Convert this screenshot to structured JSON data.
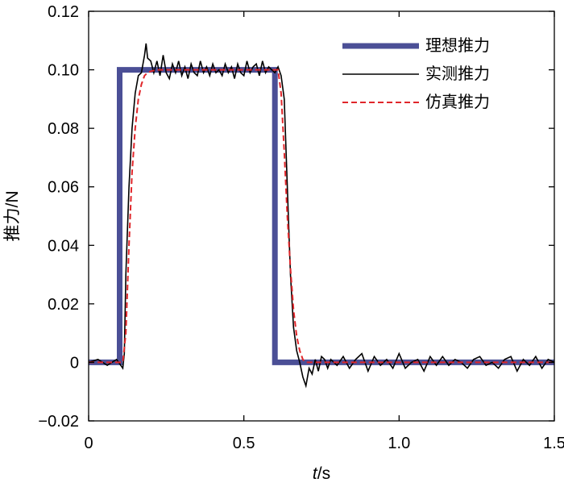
{
  "chart_data": {
    "type": "line",
    "title": "",
    "xlabel_var": "t",
    "xlabel_unit": "/s",
    "ylabel": "推力/N",
    "xlim": [
      0,
      1.5
    ],
    "ylim": [
      -0.02,
      0.12
    ],
    "xticks": [
      0,
      0.5,
      1.0,
      1.5
    ],
    "xtick_labels": [
      "0",
      "0.5",
      "1.0",
      "1.5"
    ],
    "yticks": [
      -0.02,
      0,
      0.02,
      0.04,
      0.06,
      0.08,
      0.1,
      0.12
    ],
    "ytick_labels": [
      "−0.02",
      "0",
      "0.02",
      "0.04",
      "0.06",
      "0.08",
      "0.10",
      "0.12"
    ],
    "grid": false,
    "legend_position": "top-right",
    "series": [
      {
        "name": "理想推力",
        "color": "#4b4f96",
        "style": "solid-thick",
        "x": [
          0,
          0.1,
          0.1,
          0.6,
          0.6,
          1.5
        ],
        "y": [
          0,
          0,
          0.1,
          0.1,
          0,
          0
        ]
      },
      {
        "name": "实测推力",
        "color": "#000000",
        "style": "solid",
        "x": [
          0,
          0.03,
          0.06,
          0.09,
          0.11,
          0.115,
          0.12,
          0.13,
          0.14,
          0.15,
          0.16,
          0.17,
          0.18,
          0.185,
          0.19,
          0.2,
          0.21,
          0.22,
          0.23,
          0.24,
          0.25,
          0.26,
          0.27,
          0.28,
          0.29,
          0.3,
          0.31,
          0.32,
          0.33,
          0.34,
          0.35,
          0.36,
          0.37,
          0.38,
          0.39,
          0.4,
          0.41,
          0.42,
          0.43,
          0.44,
          0.45,
          0.46,
          0.47,
          0.48,
          0.49,
          0.5,
          0.51,
          0.52,
          0.53,
          0.54,
          0.55,
          0.56,
          0.57,
          0.58,
          0.59,
          0.6,
          0.61,
          0.62,
          0.63,
          0.64,
          0.65,
          0.66,
          0.67,
          0.68,
          0.69,
          0.7,
          0.71,
          0.72,
          0.73,
          0.74,
          0.75,
          0.76,
          0.77,
          0.78,
          0.79,
          0.8,
          0.82,
          0.84,
          0.86,
          0.88,
          0.9,
          0.92,
          0.94,
          0.96,
          0.98,
          1.0,
          1.02,
          1.04,
          1.06,
          1.08,
          1.1,
          1.12,
          1.14,
          1.16,
          1.18,
          1.2,
          1.22,
          1.24,
          1.26,
          1.28,
          1.3,
          1.32,
          1.34,
          1.36,
          1.38,
          1.4,
          1.42,
          1.44,
          1.46,
          1.48,
          1.5
        ],
        "y": [
          0,
          0.001,
          -0.001,
          0.001,
          -0.002,
          0.003,
          0.03,
          0.06,
          0.08,
          0.092,
          0.098,
          0.099,
          0.105,
          0.109,
          0.104,
          0.103,
          0.099,
          0.103,
          0.098,
          0.105,
          0.099,
          0.097,
          0.102,
          0.099,
          0.103,
          0.098,
          0.101,
          0.097,
          0.102,
          0.099,
          0.098,
          0.103,
          0.099,
          0.101,
          0.098,
          0.102,
          0.099,
          0.1,
          0.098,
          0.102,
          0.099,
          0.101,
          0.097,
          0.102,
          0.099,
          0.098,
          0.103,
          0.099,
          0.101,
          0.102,
          0.098,
          0.103,
          0.099,
          0.101,
          0.1,
          0.099,
          0.101,
          0.098,
          0.09,
          0.06,
          0.03,
          0.012,
          0.004,
          0.0,
          -0.005,
          -0.008,
          -0.002,
          -0.004,
          0.001,
          -0.003,
          0.002,
          0.001,
          -0.002,
          0.001,
          0.0,
          -0.001,
          0.002,
          -0.002,
          0.001,
          0.003,
          -0.003,
          0.002,
          -0.001,
          0.001,
          -0.002,
          0.003,
          -0.002,
          0.0,
          0.001,
          -0.003,
          0.002,
          -0.001,
          0.002,
          -0.001,
          0.001,
          0.0,
          -0.002,
          0.001,
          0.002,
          -0.001,
          0.0,
          -0.002,
          0.001,
          0.002,
          -0.003,
          0.001,
          -0.001,
          0.002,
          -0.002,
          0.001,
          0.0
        ]
      },
      {
        "name": "仿真推力",
        "color": "#e0262a",
        "style": "dashed",
        "x": [
          0,
          0.1,
          0.11,
          0.12,
          0.13,
          0.14,
          0.15,
          0.16,
          0.17,
          0.18,
          0.19,
          0.2,
          0.22,
          0.25,
          0.3,
          0.4,
          0.5,
          0.6,
          0.61,
          0.62,
          0.63,
          0.64,
          0.65,
          0.66,
          0.67,
          0.68,
          0.69,
          0.7,
          0.72,
          0.75,
          0.8,
          1.0,
          1.5
        ],
        "y": [
          0,
          0,
          0.0,
          0.01,
          0.04,
          0.065,
          0.08,
          0.09,
          0.095,
          0.098,
          0.099,
          0.0995,
          0.1,
          0.1,
          0.1,
          0.1,
          0.1,
          0.1,
          0.1,
          0.092,
          0.072,
          0.05,
          0.032,
          0.018,
          0.009,
          0.004,
          0.001,
          0.0,
          0.0,
          0.0,
          0.0,
          0.0,
          0.0
        ]
      }
    ]
  }
}
